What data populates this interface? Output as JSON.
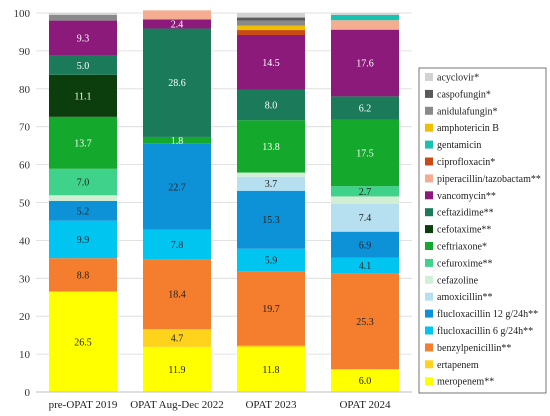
{
  "chart_data": {
    "type": "bar",
    "stacked": true,
    "categories": [
      "pre-OPAT 2019",
      "OPAT Aug-Dec 2022",
      "OPAT 2023",
      "OPAT 2024"
    ],
    "ylim": [
      0,
      100
    ],
    "yticks": [
      "0",
      "10",
      "20",
      "30",
      "40",
      "50",
      "60",
      "70",
      "80",
      "90",
      "100"
    ],
    "grid": true,
    "legend_position": "right",
    "series": [
      {
        "name": "meropenem**",
        "color": "#ffff00",
        "label_color": "#222222",
        "values": [
          26.5,
          11.9,
          11.8,
          6.0
        ],
        "labels": [
          "26.5",
          "11.9",
          "11.8",
          "6.0"
        ]
      },
      {
        "name": "ertapenem",
        "color": "#ffd21c",
        "label_color": "#222222",
        "values": [
          0,
          4.7,
          0.4,
          0
        ],
        "labels": [
          "",
          "4.7",
          "",
          ""
        ]
      },
      {
        "name": "benzylpenicillin**",
        "color": "#f57e2e",
        "label_color": "#222222",
        "values": [
          8.8,
          18.4,
          19.7,
          25.3
        ],
        "labels": [
          "8.8",
          "18.4",
          "19.7",
          "25.3"
        ]
      },
      {
        "name": "flucloxacillin 6 g/24h**",
        "color": "#00c5f0",
        "label_color": "#222222",
        "values": [
          9.9,
          7.8,
          5.9,
          4.1
        ],
        "labels": [
          "9.9",
          "7.8",
          "5.9",
          "4.1"
        ]
      },
      {
        "name": "flucloxacillin 12 g/24h**",
        "color": "#0d92d8",
        "label_color": "#222222",
        "values": [
          5.2,
          22.7,
          15.3,
          6.9
        ],
        "labels": [
          "5.2",
          "22.7",
          "15.3",
          "6.9"
        ]
      },
      {
        "name": "amoxicillin**",
        "color": "#b6e0f0",
        "label_color": "#222222",
        "values": [
          0,
          0,
          3.7,
          7.4
        ],
        "labels": [
          "",
          "",
          "3.7",
          "7.4"
        ]
      },
      {
        "name": "cefazoline",
        "color": "#d2efd6",
        "label_color": "#222222",
        "values": [
          1.5,
          0,
          1.1,
          1.9
        ],
        "labels": [
          "",
          "",
          "",
          ""
        ]
      },
      {
        "name": "cefuroxime**",
        "color": "#3ed28a",
        "label_color": "#222222",
        "values": [
          7.0,
          0,
          0,
          2.7
        ],
        "labels": [
          "7.0",
          "",
          "",
          "2.7"
        ]
      },
      {
        "name": "ceftriaxone*",
        "color": "#14a82c",
        "label_color": "#ffffff",
        "values": [
          13.7,
          1.8,
          13.8,
          17.5
        ],
        "labels": [
          "13.7",
          "1.8",
          "13.8",
          "17.5"
        ]
      },
      {
        "name": "cefotaxime**",
        "color": "#0c3d0c",
        "label_color": "#ffffff",
        "values": [
          11.1,
          0,
          0,
          0
        ],
        "labels": [
          "11.1",
          "",
          "",
          ""
        ]
      },
      {
        "name": "ceftazidime**",
        "color": "#1a7a5a",
        "label_color": "#ffffff",
        "values": [
          5.0,
          28.6,
          8.0,
          6.2
        ],
        "labels": [
          "5.0",
          "28.6",
          "8.0",
          "6.2"
        ]
      },
      {
        "name": "vancomycin**",
        "color": "#8c1a7a",
        "label_color": "#ffffff",
        "values": [
          9.3,
          2.4,
          14.5,
          17.6
        ],
        "labels": [
          "9.3",
          "2.4",
          "14.5",
          "17.6"
        ]
      },
      {
        "name": "piperacillin/tazobactam**",
        "color": "#f5ad92",
        "label_color": "#222222",
        "values": [
          0,
          2.4,
          0,
          2.5
        ],
        "labels": [
          "",
          "",
          "",
          ""
        ]
      },
      {
        "name": "ciprofloxacin*",
        "color": "#c84a14",
        "label_color": "#222222",
        "values": [
          0,
          0,
          1.3,
          0
        ],
        "labels": [
          "",
          "",
          "",
          ""
        ]
      },
      {
        "name": "gentamicin",
        "color": "#19c2b0",
        "label_color": "#222222",
        "values": [
          0,
          0,
          0,
          1.4
        ],
        "labels": [
          "",
          "",
          "",
          ""
        ]
      },
      {
        "name": "amphotericin B",
        "color": "#f0c000",
        "label_color": "#222222",
        "values": [
          0,
          0,
          1.2,
          0
        ],
        "labels": [
          "",
          "",
          "",
          ""
        ]
      },
      {
        "name": "anidulafungin*",
        "color": "#8a8a8a",
        "label_color": "#222222",
        "values": [
          1.5,
          0,
          1.3,
          0
        ],
        "labels": [
          "",
          "",
          "",
          ""
        ]
      },
      {
        "name": "caspofungin*",
        "color": "#5a5a5a",
        "label_color": "#222222",
        "values": [
          0,
          0,
          0.8,
          0
        ],
        "labels": [
          "",
          "",
          "",
          ""
        ]
      },
      {
        "name": "acyclovir*",
        "color": "#d2d2d2",
        "label_color": "#222222",
        "values": [
          0.5,
          0,
          1.2,
          0.5
        ],
        "labels": [
          "",
          "",
          "",
          ""
        ]
      }
    ],
    "legend_order": [
      "acyclovir*",
      "caspofungin*",
      "anidulafungin*",
      "amphotericin B",
      "gentamicin",
      "ciprofloxacin*",
      "piperacillin/tazobactam**",
      "vancomycin**",
      "ceftazidime**",
      "cefotaxime**",
      "ceftriaxone*",
      "cefuroxime**",
      "cefazoline",
      "amoxicillin**",
      "flucloxacillin 12 g/24h**",
      "flucloxacillin 6 g/24h**",
      "benzylpenicillin**",
      "ertapenem",
      "meropenem**"
    ]
  }
}
